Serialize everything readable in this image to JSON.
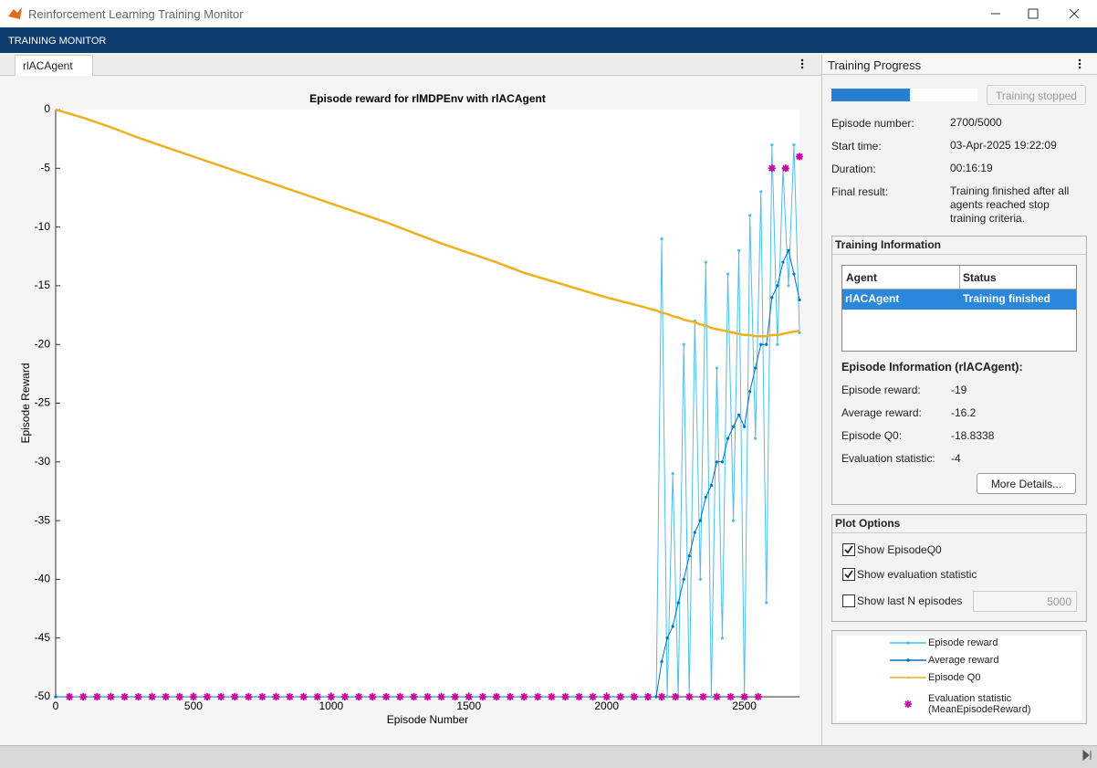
{
  "window": {
    "title": "Reinforcement Learning Training Monitor"
  },
  "toolstrip": {
    "title": "TRAINING MONITOR"
  },
  "document_tab": {
    "label": "rlACAgent"
  },
  "training_progress": {
    "title": "Training Progress",
    "stop_button": "Training stopped",
    "progress": {
      "episode": 2700,
      "total": 5000
    },
    "fields": [
      {
        "label": "Episode number:",
        "value": "2700/5000"
      },
      {
        "label": "Start time:",
        "value": "03-Apr-2025 19:22:09"
      },
      {
        "label": "Duration:",
        "value": "00:16:19"
      },
      {
        "label": "Final result:",
        "value": "Training finished after all agents reached stop training criteria."
      }
    ]
  },
  "training_information": {
    "title": "Training Information",
    "columns": [
      "Agent",
      "Status"
    ],
    "rows": [
      [
        "rlACAgent",
        "Training finished"
      ]
    ],
    "episode_info": {
      "title": "Episode Information (rlACAgent):",
      "fields": [
        {
          "label": "Episode reward:",
          "value": "-19"
        },
        {
          "label": "Average reward:",
          "value": "-16.2"
        },
        {
          "label": "Episode Q0:",
          "value": "-18.8338"
        },
        {
          "label": "Evaluation statistic:",
          "value": "-4"
        }
      ]
    },
    "more_button": "More Details..."
  },
  "plot_options": {
    "title": "Plot Options",
    "options": [
      {
        "label": "Show EpisodeQ0",
        "checked": true
      },
      {
        "label": "Show evaluation statistic",
        "checked": true
      },
      {
        "label": "Show last N episodes",
        "checked": false
      }
    ],
    "last_n": "5000"
  },
  "chart_data": {
    "type": "line",
    "title": "Episode reward for rlMDPEnv with rlACAgent",
    "x_label": "Episode Number",
    "y_label": "Episode Reward",
    "xlim": [
      0,
      2700
    ],
    "ylim": [
      -50,
      0
    ],
    "xticks": [
      0,
      500,
      1000,
      1500,
      2000,
      2500
    ],
    "yticks": [
      0,
      -5,
      -10,
      -15,
      -20,
      -25,
      -30,
      -35,
      -40,
      -45,
      -50
    ],
    "series": [
      {
        "name": "Episode reward",
        "color": "#4dbeee",
        "line_style": "-",
        "marker": ".",
        "x": [
          0,
          100,
          200,
          300,
          400,
          500,
          600,
          700,
          800,
          900,
          1000,
          1100,
          1200,
          1300,
          1400,
          1500,
          1600,
          1700,
          1800,
          1900,
          2000,
          2100,
          2180,
          2200,
          2220,
          2240,
          2260,
          2280,
          2300,
          2320,
          2340,
          2360,
          2380,
          2400,
          2420,
          2440,
          2460,
          2480,
          2500,
          2520,
          2540,
          2560,
          2580,
          2600,
          2620,
          2640,
          2660,
          2680,
          2700
        ],
        "values": [
          -50,
          -50,
          -50,
          -50,
          -50,
          -50,
          -50,
          -50,
          -50,
          -50,
          -50,
          -50,
          -50,
          -50,
          -50,
          -50,
          -50,
          -50,
          -50,
          -50,
          -50,
          -50,
          -50,
          -11,
          -50,
          -31,
          -50,
          -20,
          -50,
          -18,
          -40,
          -13,
          -50,
          -22,
          -45,
          -14,
          -35,
          -12,
          -50,
          -9,
          -28,
          -7,
          -42,
          -3,
          -20,
          -5,
          -15,
          -3,
          -19
        ]
      },
      {
        "name": "Average reward",
        "color": "#0072bd",
        "line_style": "-",
        "marker": ".",
        "x": [
          0,
          100,
          200,
          300,
          400,
          500,
          600,
          700,
          800,
          900,
          1000,
          1100,
          1200,
          1300,
          1400,
          1500,
          1600,
          1700,
          1800,
          1900,
          2000,
          2100,
          2180,
          2200,
          2220,
          2240,
          2260,
          2280,
          2300,
          2320,
          2340,
          2360,
          2380,
          2400,
          2420,
          2440,
          2460,
          2480,
          2500,
          2520,
          2540,
          2560,
          2580,
          2600,
          2620,
          2640,
          2660,
          2680,
          2700
        ],
        "values": [
          -50,
          -50,
          -50,
          -50,
          -50,
          -50,
          -50,
          -50,
          -50,
          -50,
          -50,
          -50,
          -50,
          -50,
          -50,
          -50,
          -50,
          -50,
          -50,
          -50,
          -50,
          -50,
          -50,
          -47,
          -45,
          -44,
          -42,
          -40,
          -38,
          -36,
          -35,
          -33,
          -32,
          -30,
          -30,
          -28,
          -27,
          -26,
          -27,
          -24,
          -22,
          -20,
          -20,
          -16,
          -15,
          -13,
          -12,
          -14,
          -16.2
        ]
      },
      {
        "name": "Episode Q0",
        "color": "#edb120",
        "line_style": "-",
        "marker": "none",
        "x": [
          0,
          100,
          200,
          300,
          400,
          500,
          600,
          700,
          800,
          900,
          1000,
          1100,
          1200,
          1300,
          1400,
          1500,
          1600,
          1700,
          1800,
          1900,
          2000,
          2100,
          2180,
          2200,
          2220,
          2240,
          2260,
          2280,
          2300,
          2320,
          2340,
          2360,
          2380,
          2400,
          2420,
          2440,
          2460,
          2480,
          2500,
          2520,
          2540,
          2560,
          2580,
          2600,
          2620,
          2640,
          2660,
          2680,
          2700
        ],
        "values": [
          0,
          -0.7,
          -1.5,
          -2.4,
          -3.2,
          -4,
          -4.8,
          -5.6,
          -6.4,
          -7.2,
          -8,
          -8.8,
          -9.6,
          -10.5,
          -11.4,
          -12.2,
          -13,
          -13.9,
          -14.6,
          -15.3,
          -16,
          -16.6,
          -17.1,
          -17.3,
          -17.4,
          -17.6,
          -17.7,
          -17.9,
          -18,
          -18.1,
          -18.3,
          -18.4,
          -18.6,
          -18.7,
          -18.8,
          -18.9,
          -19,
          -19.1,
          -19.2,
          -19.2,
          -19.3,
          -19.3,
          -19.3,
          -19.2,
          -19.2,
          -19.1,
          -19,
          -18.9,
          -18.8338
        ]
      },
      {
        "name": "Evaluation statistic (MeanEpisodeReward)",
        "color": "#cc00a0",
        "line_style": "none",
        "marker": "*",
        "x": [
          50,
          100,
          150,
          200,
          250,
          300,
          350,
          400,
          450,
          500,
          550,
          600,
          650,
          700,
          750,
          800,
          850,
          900,
          950,
          1000,
          1050,
          1100,
          1150,
          1200,
          1250,
          1300,
          1350,
          1400,
          1450,
          1500,
          1550,
          1600,
          1650,
          1700,
          1750,
          1800,
          1850,
          1900,
          1950,
          2000,
          2050,
          2100,
          2150,
          2200,
          2250,
          2300,
          2350,
          2400,
          2450,
          2500,
          2550,
          2600,
          2650,
          2700
        ],
        "values": [
          -50,
          -50,
          -50,
          -50,
          -50,
          -50,
          -50,
          -50,
          -50,
          -50,
          -50,
          -50,
          -50,
          -50,
          -50,
          -50,
          -50,
          -50,
          -50,
          -50,
          -50,
          -50,
          -50,
          -50,
          -50,
          -50,
          -50,
          -50,
          -50,
          -50,
          -50,
          -50,
          -50,
          -50,
          -50,
          -50,
          -50,
          -50,
          -50,
          -50,
          -50,
          -50,
          -50,
          -50,
          -50,
          -50,
          -50,
          -50,
          -50,
          -50,
          -50,
          -5,
          -5,
          -4
        ]
      }
    ]
  }
}
